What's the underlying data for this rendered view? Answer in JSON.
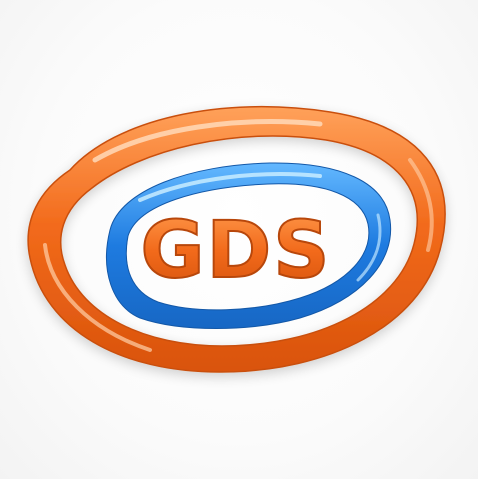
{
  "logo": {
    "text": "GDS",
    "icon": "gds-swoosh-logo",
    "colors": {
      "orange": "#f26a1b",
      "orange_light": "#ffb070",
      "blue": "#1e7be0",
      "blue_light": "#8ad0ff",
      "background": "#ffffff"
    }
  }
}
